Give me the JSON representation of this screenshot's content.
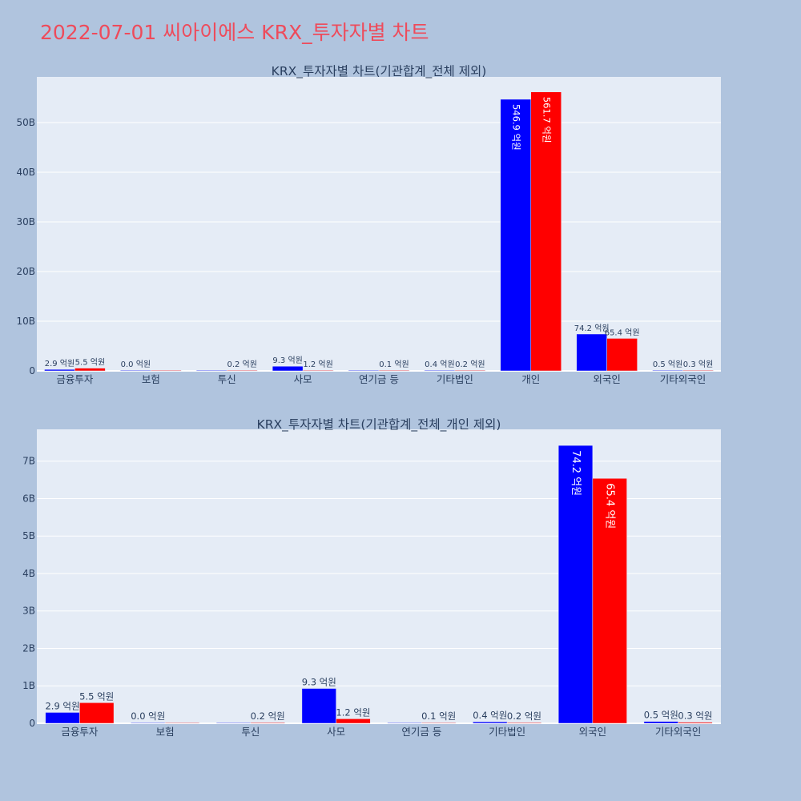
{
  "page": {
    "title": "2022-07-01 씨아이에스 KRX_투자자별 차트",
    "title_color": "#ee4b5b",
    "background": "#b0c4de",
    "plot_background": "#e5ecf6"
  },
  "chart_data": [
    {
      "type": "bar",
      "title": "KRX_투자자별 차트(기관합계_전체 제외)",
      "categories": [
        "금융투자",
        "보험",
        "투신",
        "사모",
        "연기금 등",
        "기타법인",
        "개인",
        "외국인",
        "기타외국인"
      ],
      "series": [
        {
          "color": "#0000ff",
          "values": [
            0.29,
            0.0,
            0.0,
            0.93,
            0.0,
            0.04,
            54.69,
            7.42,
            0.05
          ],
          "labels": [
            "2.9 억원",
            "0.0 억원",
            "",
            "9.3 억원",
            "",
            "0.4 억원",
            "546.9 억원",
            "74.2 억원",
            "0.5 억원"
          ]
        },
        {
          "color": "#ff0000",
          "values": [
            0.55,
            0.0,
            0.02,
            0.12,
            0.01,
            0.02,
            56.17,
            6.54,
            0.03
          ],
          "labels": [
            "5.5 억원",
            "",
            "0.2 억원",
            "1.2 억원",
            "0.1 억원",
            "0.2 억원",
            "561.7 억원",
            "65.4 억원",
            "0.3 억원"
          ]
        }
      ],
      "yticks": [
        "0",
        "10B",
        "20B",
        "30B",
        "40B",
        "50B"
      ],
      "ytick_values": [
        0,
        10,
        20,
        30,
        40,
        50
      ],
      "ylim": [
        0,
        59.2
      ],
      "grid": true
    },
    {
      "type": "bar",
      "title": "KRX_투자자별 차트(기관합계_전체_개인 제외)",
      "categories": [
        "금융투자",
        "보험",
        "투신",
        "사모",
        "연기금 등",
        "기타법인",
        "외국인",
        "기타외국인"
      ],
      "series": [
        {
          "color": "#0000ff",
          "values": [
            0.29,
            0.0,
            0.0,
            0.93,
            0.0,
            0.04,
            7.42,
            0.05
          ],
          "labels": [
            "2.9 억원",
            "0.0 억원",
            "",
            "9.3 억원",
            "",
            "0.4 억원",
            "74.2 억원",
            "0.5 억원"
          ]
        },
        {
          "color": "#ff0000",
          "values": [
            0.55,
            0.0,
            0.02,
            0.12,
            0.01,
            0.02,
            6.54,
            0.03
          ],
          "labels": [
            "5.5 억원",
            "",
            "0.2 억원",
            "1.2 억원",
            "0.1 억원",
            "0.2 억원",
            "65.4 억원",
            "0.3 억원"
          ]
        }
      ],
      "yticks": [
        "0",
        "1B",
        "2B",
        "3B",
        "4B",
        "5B",
        "6B",
        "7B"
      ],
      "ytick_values": [
        0,
        1,
        2,
        3,
        4,
        5,
        6,
        7
      ],
      "ylim": [
        0,
        7.85
      ],
      "grid": true
    }
  ]
}
